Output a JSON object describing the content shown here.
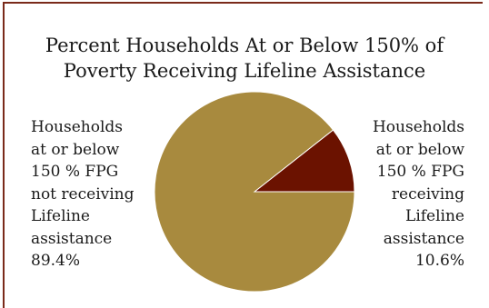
{
  "chart_data": {
    "type": "pie",
    "title_lines": [
      "Percent Households At or Below 150% of",
      "Poverty Receiving Lifeline Assistance"
    ],
    "slices": [
      {
        "label_lines": [
          "Households",
          "at or below",
          "150 % FPG",
          "receiving",
          "Lifeline",
          "assistance",
          "10.6%"
        ],
        "value": 10.6,
        "color": "#6b1200"
      },
      {
        "label_lines": [
          "Households",
          "at or below",
          "150 % FPG",
          "not receiving",
          "Lifeline",
          "assistance",
          "89.4%"
        ],
        "value": 89.4,
        "color": "#a88a3e"
      }
    ]
  }
}
